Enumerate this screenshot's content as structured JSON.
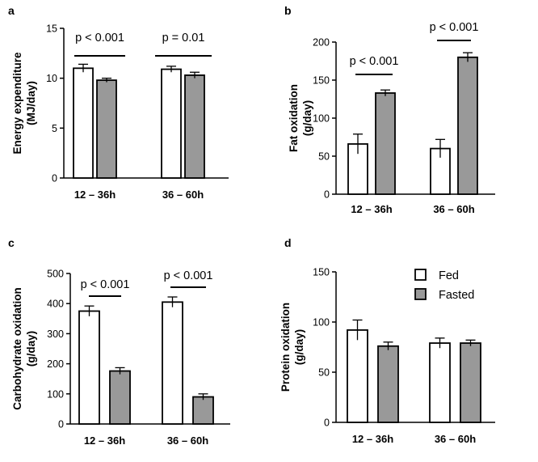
{
  "legend": {
    "entries": [
      {
        "label": "Fed",
        "color": "#ffffff"
      },
      {
        "label": "Fasted",
        "color": "#999999"
      }
    ]
  },
  "chart_data": [
    {
      "panel": "a",
      "type": "bar",
      "xlabel": "",
      "ylabel": "Energy expenditure (MJ/day)",
      "ylabel_lines": [
        "Energy expenditure",
        "(MJ/day)"
      ],
      "ylim": [
        0,
        15
      ],
      "yticks": [
        0,
        5,
        10,
        15
      ],
      "categories": [
        "12 – 36h",
        "36 – 60h"
      ],
      "series": [
        {
          "name": "Fed",
          "color": "#ffffff",
          "values": [
            11.0,
            10.9
          ],
          "errors": [
            0.4,
            0.3
          ]
        },
        {
          "name": "Fasted",
          "color": "#999999",
          "values": [
            9.8,
            10.3
          ],
          "errors": [
            0.2,
            0.3
          ]
        }
      ],
      "annotations": [
        "p < 0.001",
        "p = 0.01"
      ]
    },
    {
      "panel": "b",
      "type": "bar",
      "xlabel": "",
      "ylabel": "Fat oxidation (g/day)",
      "ylabel_lines": [
        "Fat oxidation",
        "(g/day)"
      ],
      "ylim": [
        0,
        200
      ],
      "yticks": [
        0,
        50,
        100,
        150,
        200
      ],
      "categories": [
        "12 – 36h",
        "36 – 60h"
      ],
      "series": [
        {
          "name": "Fed",
          "color": "#ffffff",
          "values": [
            66,
            60
          ],
          "errors": [
            13,
            12
          ]
        },
        {
          "name": "Fasted",
          "color": "#999999",
          "values": [
            133,
            180
          ],
          "errors": [
            4,
            6
          ]
        }
      ],
      "annotations": [
        "p < 0.001",
        "p < 0.001"
      ]
    },
    {
      "panel": "c",
      "type": "bar",
      "xlabel": "",
      "ylabel": "Carbohydrate oxidation (g/day)",
      "ylabel_lines": [
        "Carbohydrate oxidation",
        "(g/day)"
      ],
      "ylim": [
        0,
        500
      ],
      "yticks": [
        0,
        100,
        200,
        300,
        400,
        500
      ],
      "categories": [
        "12 – 36h",
        "36 – 60h"
      ],
      "series": [
        {
          "name": "Fed",
          "color": "#ffffff",
          "values": [
            375,
            405
          ],
          "errors": [
            17,
            17
          ]
        },
        {
          "name": "Fasted",
          "color": "#999999",
          "values": [
            176,
            90
          ],
          "errors": [
            11,
            10
          ]
        }
      ],
      "annotations": [
        "p < 0.001",
        "p < 0.001"
      ]
    },
    {
      "panel": "d",
      "type": "bar",
      "xlabel": "",
      "ylabel": "Protein oxidation (g/day)",
      "ylabel_lines": [
        "Protein oxidation",
        "(g/day)"
      ],
      "ylim": [
        0,
        150
      ],
      "yticks": [
        0,
        50,
        100,
        150
      ],
      "categories": [
        "12 – 36h",
        "36 – 60h"
      ],
      "series": [
        {
          "name": "Fed",
          "color": "#ffffff",
          "values": [
            92,
            79
          ],
          "errors": [
            10,
            5
          ]
        },
        {
          "name": "Fasted",
          "color": "#999999",
          "values": [
            76,
            79
          ],
          "errors": [
            4,
            3
          ]
        }
      ],
      "annotations": []
    }
  ]
}
